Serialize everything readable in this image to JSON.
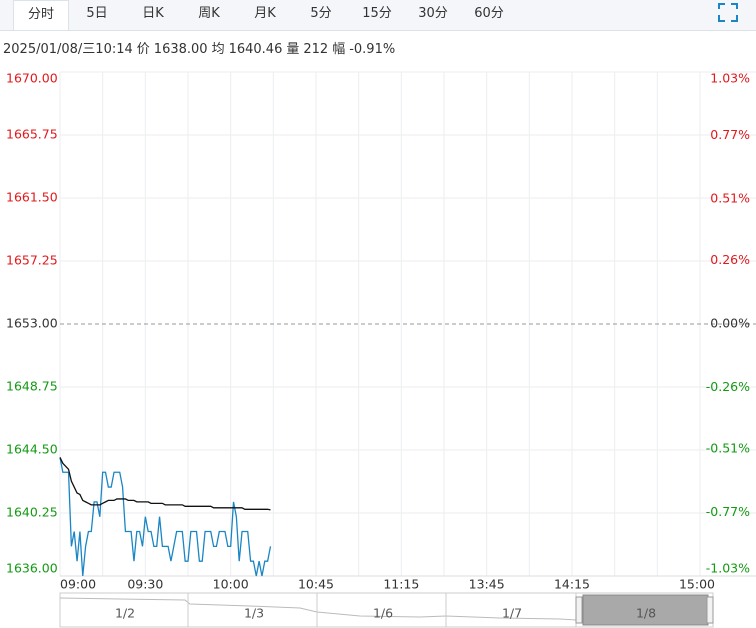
{
  "header": {
    "tabs": [
      "分时",
      "5日",
      "日K",
      "周K",
      "月K",
      "5分",
      "15分",
      "30分",
      "60分"
    ],
    "info": [
      "2025/01/08/三10:14",
      "价",
      "1638.00",
      "均",
      "1640.46",
      "量",
      "212",
      "幅",
      "-0.91%"
    ]
  },
  "chart_data": {
    "type": "line",
    "ylim": [
      1636,
      1670
    ],
    "yticks": [
      {
        "value": 1670,
        "label": "1670.00"
      },
      {
        "value": 1665.75,
        "label": "1665.75"
      },
      {
        "value": 1661.5,
        "label": "1661.50"
      },
      {
        "value": 1657.25,
        "label": "1657.25"
      },
      {
        "value": 1653,
        "label": "1653.00"
      },
      {
        "value": 1648.75,
        "label": "1648.75"
      },
      {
        "value": 1644.5,
        "label": "1644.50"
      },
      {
        "value": 1640.25,
        "label": "1640.25"
      },
      {
        "value": 1636,
        "label": "1636.00"
      }
    ],
    "y2lim": [
      -1.03,
      1.03
    ],
    "y2ticks": [
      {
        "value": 1.03,
        "label": "1.03%"
      },
      {
        "value": 0.77,
        "label": "0.77%"
      },
      {
        "value": 0.51,
        "label": "0.51%"
      },
      {
        "value": 0.26,
        "label": "0.26%"
      },
      {
        "value": 0,
        "label": "0.00%"
      },
      {
        "value": -0.26,
        "label": "-0.26%"
      },
      {
        "value": -0.51,
        "label": "-0.51%"
      },
      {
        "value": -0.77,
        "label": "-0.77%"
      },
      {
        "value": -1.03,
        "label": "-1.03%"
      }
    ],
    "xlim": [
      0,
      225
    ],
    "xticks": [
      {
        "value": 0,
        "label": "09:00"
      },
      {
        "value": 30,
        "label": "09:30"
      },
      {
        "value": 60,
        "label": "10:00"
      },
      {
        "value": 90,
        "label": "10:45"
      },
      {
        "value": 120,
        "label": "11:15"
      },
      {
        "value": 150,
        "label": "13:45"
      },
      {
        "value": 180,
        "label": "14:15"
      },
      {
        "value": 225,
        "label": "15:00"
      }
    ],
    "grid": true,
    "up_color": "#e0191b",
    "down_color": "#139a13",
    "series": [
      {
        "color": "#1a86c4",
        "values": [
          1644,
          1643,
          1643,
          1643,
          1638,
          1639,
          1637,
          1639,
          1636,
          1638,
          1639,
          1639,
          1641,
          1641,
          1640,
          1643,
          1643,
          1642,
          1642,
          1643,
          1643,
          1643,
          1642,
          1639,
          1639,
          1639,
          1637,
          1639,
          1639,
          1638,
          1640,
          1639,
          1639,
          1638,
          1638,
          1640,
          1638,
          1638,
          1638,
          1637,
          1638,
          1639,
          1639,
          1639,
          1637,
          1637,
          1639,
          1639,
          1639,
          1637,
          1637,
          1639,
          1639,
          1639,
          1638,
          1638,
          1639,
          1639,
          1639,
          1638,
          1638,
          1641,
          1640,
          1637,
          1639,
          1639,
          1639,
          1637,
          1637,
          1636,
          1637,
          1636,
          1637,
          1637,
          1638
        ]
      },
      {
        "color": "#111111",
        "values": [
          1644.0,
          1643.6,
          1643.4,
          1643.2,
          1642.4,
          1642.0,
          1641.6,
          1641.5,
          1641.1,
          1641.0,
          1640.9,
          1640.8,
          1640.8,
          1640.8,
          1640.8,
          1640.9,
          1641.0,
          1641.1,
          1641.1,
          1641.1,
          1641.2,
          1641.2,
          1641.2,
          1641.2,
          1641.1,
          1641.1,
          1641.1,
          1641.0,
          1641.0,
          1641.0,
          1641.0,
          1641.0,
          1640.9,
          1640.9,
          1640.9,
          1640.9,
          1640.9,
          1640.8,
          1640.8,
          1640.8,
          1640.8,
          1640.8,
          1640.8,
          1640.8,
          1640.7,
          1640.7,
          1640.7,
          1640.7,
          1640.7,
          1640.7,
          1640.7,
          1640.7,
          1640.7,
          1640.7,
          1640.6,
          1640.6,
          1640.6,
          1640.6,
          1640.6,
          1640.6,
          1640.6,
          1640.6,
          1640.6,
          1640.6,
          1640.6,
          1640.5,
          1640.5,
          1640.5,
          1640.5,
          1640.5,
          1640.5,
          1640.5,
          1640.5,
          1640.5,
          1640.46
        ]
      }
    ]
  },
  "navigator": {
    "labels": [
      "1/2",
      "1/3",
      "1/6",
      "1/7",
      "1/8"
    ]
  }
}
